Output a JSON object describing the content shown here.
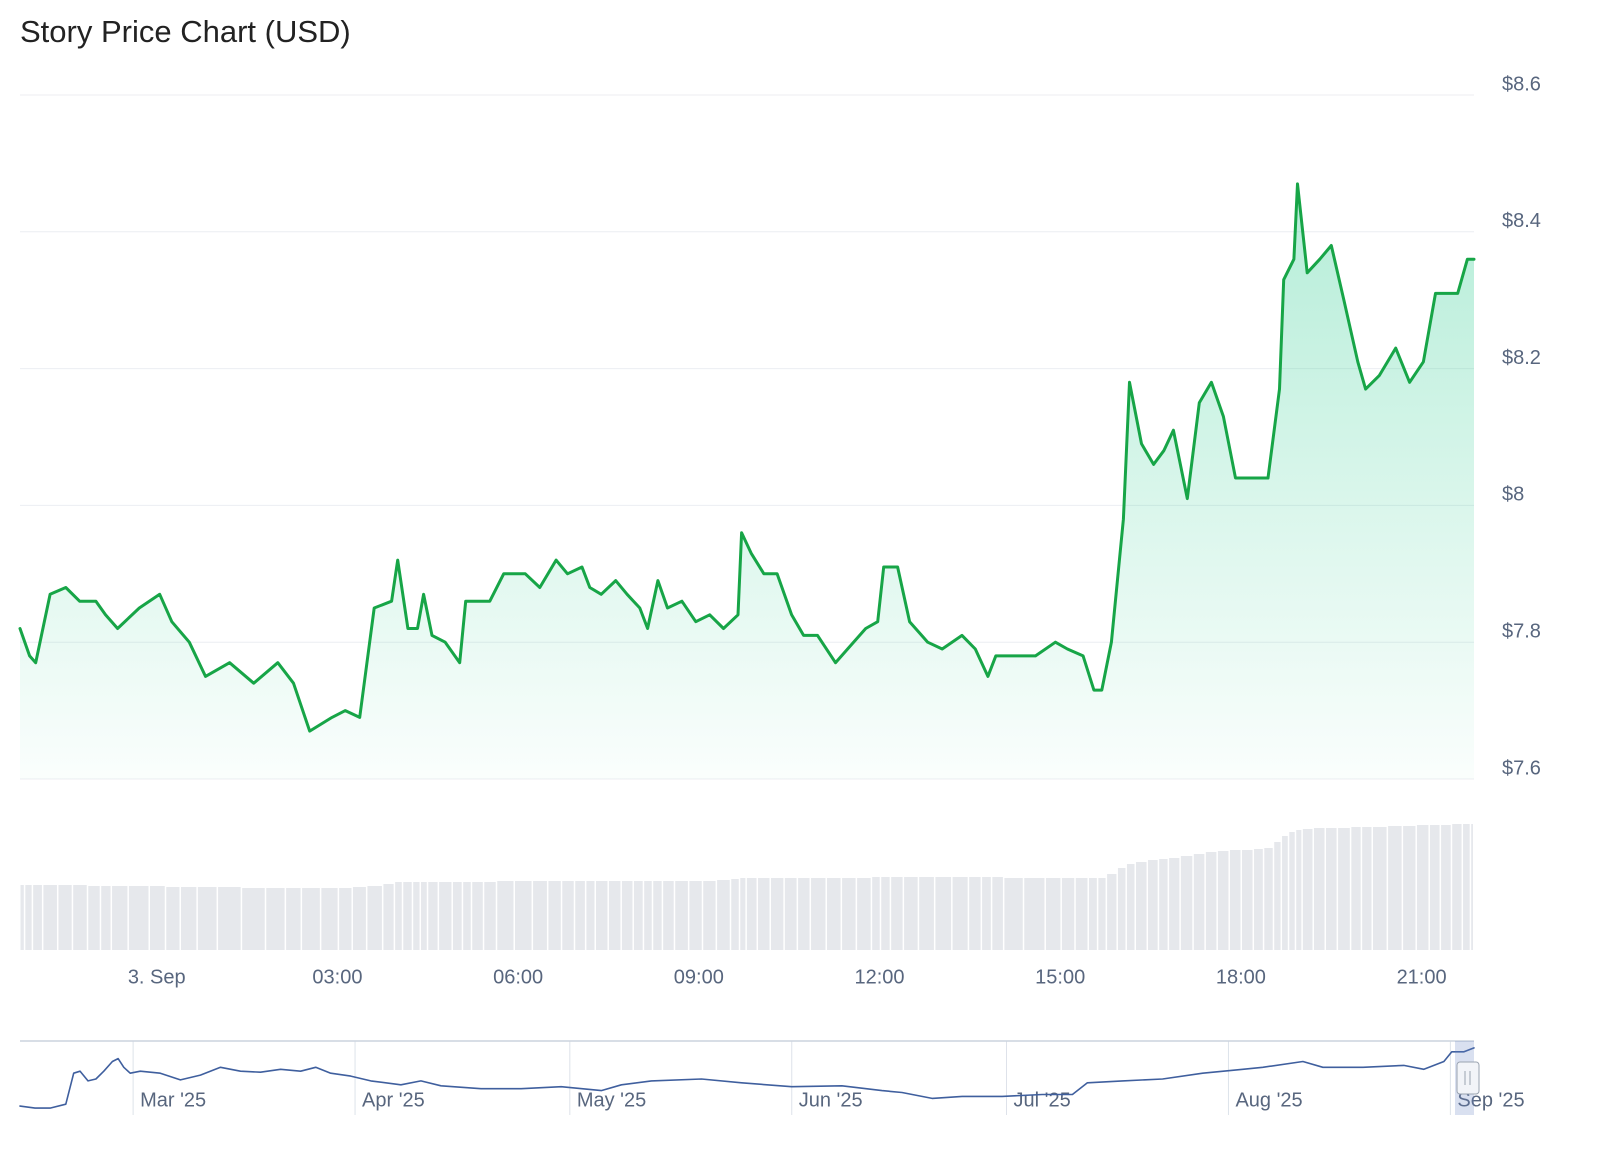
{
  "chart_data": [
    {
      "type": "line",
      "title": "Story Price Chart (USD)",
      "color": "#17a547",
      "fill": true,
      "grid": true,
      "x": [
        -2.27,
        -2.11,
        -2.01,
        -1.77,
        -1.51,
        -1.28,
        -1.01,
        -0.85,
        -0.65,
        -0.29,
        0.05,
        0.25,
        0.54,
        0.81,
        1.21,
        1.61,
        2.01,
        2.27,
        2.54,
        2.91,
        3.13,
        3.37,
        3.61,
        3.9,
        4.0,
        4.17,
        4.33,
        4.43,
        4.57,
        4.79,
        5.03,
        5.13,
        5.33,
        5.53,
        5.76,
        6.12,
        6.36,
        6.63,
        6.82,
        7.06,
        7.19,
        7.38,
        7.62,
        7.81,
        8.02,
        8.15,
        8.32,
        8.48,
        8.72,
        8.95,
        9.18,
        9.41,
        9.65,
        9.71,
        9.87,
        10.08,
        10.3,
        10.54,
        10.74,
        10.97,
        11.27,
        11.47,
        11.77,
        11.97,
        12.07,
        12.3,
        12.5,
        12.8,
        13.04,
        13.37,
        13.59,
        13.8,
        13.93,
        14.2,
        14.59,
        14.92,
        15.12,
        15.38,
        15.56,
        15.69,
        15.85,
        16.05,
        16.15,
        16.35,
        16.55,
        16.72,
        16.88,
        17.11,
        17.31,
        17.51,
        17.71,
        17.91,
        18.11,
        18.31,
        18.45,
        18.64,
        18.71,
        18.88,
        18.94,
        19.1,
        19.31,
        19.5,
        19.71,
        19.94,
        20.07,
        20.3,
        20.57,
        20.8,
        21.03,
        21.23,
        21.4,
        21.6,
        21.76,
        21.87
      ],
      "values": [
        7.82,
        7.78,
        7.77,
        7.87,
        7.88,
        7.86,
        7.86,
        7.84,
        7.82,
        7.85,
        7.87,
        7.83,
        7.8,
        7.75,
        7.77,
        7.74,
        7.77,
        7.74,
        7.67,
        7.69,
        7.7,
        7.69,
        7.85,
        7.86,
        7.92,
        7.82,
        7.82,
        7.87,
        7.81,
        7.8,
        7.77,
        7.86,
        7.86,
        7.86,
        7.9,
        7.9,
        7.88,
        7.92,
        7.9,
        7.91,
        7.88,
        7.87,
        7.89,
        7.87,
        7.85,
        7.82,
        7.89,
        7.85,
        7.86,
        7.83,
        7.84,
        7.82,
        7.84,
        7.96,
        7.93,
        7.9,
        7.9,
        7.84,
        7.81,
        7.81,
        7.77,
        7.79,
        7.82,
        7.83,
        7.91,
        7.91,
        7.83,
        7.8,
        7.79,
        7.81,
        7.79,
        7.75,
        7.78,
        7.78,
        7.78,
        7.8,
        7.79,
        7.78,
        7.73,
        7.73,
        7.8,
        7.98,
        8.18,
        8.09,
        8.06,
        8.08,
        8.11,
        8.01,
        8.15,
        8.18,
        8.13,
        8.04,
        8.04,
        8.04,
        8.04,
        8.17,
        8.33,
        8.36,
        8.47,
        8.34,
        8.36,
        8.38,
        8.3,
        8.21,
        8.17,
        8.19,
        8.23,
        8.18,
        8.21,
        8.31,
        8.31,
        8.31,
        8.36,
        8.36
      ],
      "volume": [
        65,
        65,
        65,
        65,
        65,
        65,
        64,
        64,
        64,
        64,
        64,
        63,
        63,
        63,
        63,
        62,
        62,
        62,
        62,
        62,
        62,
        63,
        64,
        66,
        68,
        68,
        68,
        68,
        68,
        68,
        68,
        68,
        68,
        68,
        69,
        69,
        69,
        69,
        69,
        69,
        69,
        69,
        69,
        69,
        69,
        69,
        69,
        69,
        69,
        69,
        69,
        70,
        71,
        72,
        72,
        72,
        72,
        72,
        72,
        72,
        72,
        72,
        72,
        73,
        73,
        73,
        73,
        73,
        73,
        73,
        73,
        73,
        73,
        72,
        72,
        72,
        72,
        72,
        72,
        72,
        76,
        82,
        86,
        88,
        90,
        91,
        92,
        94,
        96,
        98,
        99,
        100,
        100,
        101,
        102,
        108,
        114,
        118,
        120,
        121,
        122,
        122,
        122,
        123,
        123,
        123,
        124,
        124,
        125,
        125,
        125,
        126,
        126,
        126
      ],
      "volume_color": "#e6e8ec",
      "vlim": [
        0,
        130
      ],
      "xlim": [
        -2.27,
        21.87
      ],
      "xticks": [
        {
          "value": 0,
          "label": "3. Sep"
        },
        {
          "value": 3,
          "label": "03:00"
        },
        {
          "value": 6,
          "label": "06:00"
        },
        {
          "value": 9,
          "label": "09:00"
        },
        {
          "value": 12,
          "label": "12:00"
        },
        {
          "value": 15,
          "label": "15:00"
        },
        {
          "value": 18,
          "label": "18:00"
        },
        {
          "value": 21,
          "label": "21:00"
        }
      ],
      "ylim": [
        7.6,
        8.6
      ],
      "yticks": [
        {
          "value": 7.6,
          "label": "$7.6"
        },
        {
          "value": 7.8,
          "label": "$7.8"
        },
        {
          "value": 8,
          "label": "$8"
        },
        {
          "value": 8.2,
          "label": "$8.2"
        },
        {
          "value": 8.4,
          "label": "$8.4"
        },
        {
          "value": 8.6,
          "label": "$8.6"
        }
      ]
    },
    {
      "type": "line",
      "color": "#3f5f9e",
      "fill": false,
      "grid": true,
      "x": [
        -15.8,
        -13.7,
        -11.6,
        -9.4,
        -8.3,
        -7.4,
        -6.3,
        -5.2,
        -4.1,
        -2.9,
        -2.1,
        -1.3,
        -0.4,
        1.0,
        3.8,
        6.6,
        9.4,
        12.2,
        15.0,
        17.8,
        20.6,
        23.4,
        25.5,
        27.6,
        30.4,
        33.2,
        37.4,
        40.2,
        43.0,
        48.6,
        54.2,
        59.8,
        65.4,
        68.2,
        72.4,
        79.4,
        85.0,
        92.0,
        99.0,
        104.6,
        107.4,
        111.6,
        115.8,
        121.4,
        127.0,
        131.2,
        133.3,
        138.2,
        143.8,
        149.4,
        155.0,
        157.8,
        163.4,
        166.2,
        171.8,
        177.5,
        180.3,
        183.1,
        184.2,
        185.9,
        187.3
      ],
      "values": [
        1.44,
        1.22,
        1.22,
        1.66,
        5.18,
        5.4,
        4.3,
        4.52,
        5.4,
        6.5,
        6.83,
        5.84,
        5.18,
        5.4,
        5.18,
        4.41,
        4.96,
        5.84,
        5.4,
        5.29,
        5.62,
        5.4,
        5.84,
        5.18,
        4.85,
        4.3,
        3.86,
        4.3,
        3.75,
        3.42,
        3.42,
        3.64,
        3.2,
        3.86,
        4.3,
        4.52,
        4.08,
        3.64,
        3.75,
        3.2,
        2.98,
        2.32,
        2.54,
        2.54,
        2.76,
        2.76,
        4.08,
        4.3,
        4.52,
        5.18,
        5.62,
        5.84,
        6.5,
        5.84,
        5.84,
        6.06,
        5.62,
        6.5,
        7.6,
        7.6,
        8.04
      ],
      "xlim": [
        -15.8,
        187.3
      ],
      "xticks": [
        {
          "value": 0,
          "label": "Mar '25"
        },
        {
          "value": 31,
          "label": "Apr '25"
        },
        {
          "value": 61,
          "label": "May '25"
        },
        {
          "value": 92,
          "label": "Jun '25"
        },
        {
          "value": 122,
          "label": "Jul '25"
        },
        {
          "value": 153,
          "label": "Aug '25"
        },
        {
          "value": 184,
          "label": "Sep '25"
        }
      ],
      "ylim": [
        1,
        8.6
      ]
    }
  ]
}
